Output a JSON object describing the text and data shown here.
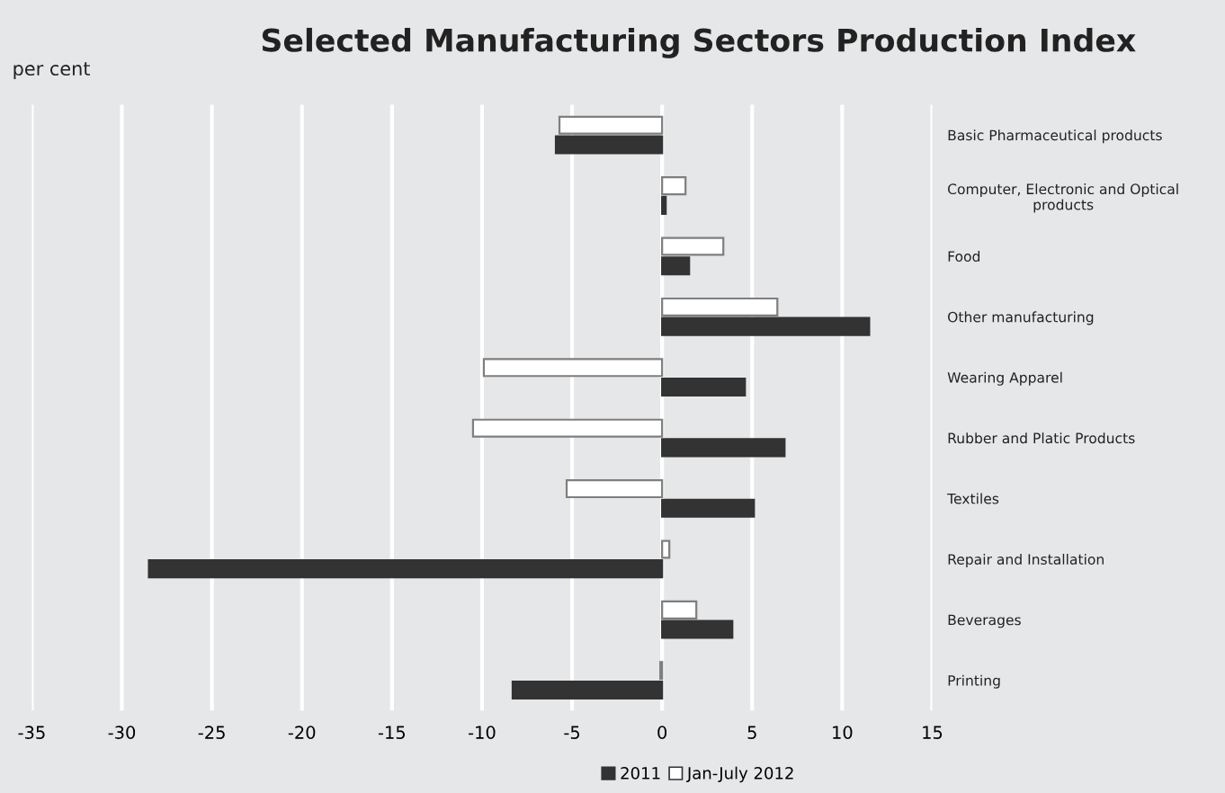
{
  "chart_data": {
    "type": "bar",
    "orientation": "horizontal",
    "title": "Selected Manufacturing Sectors Production Index",
    "xlabel": "per cent",
    "categories": [
      "Basic Pharmaceutical products",
      "Computer, Electronic and Optical\nproducts",
      "Food",
      "Other manufacturing",
      "Wearing Apparel",
      "Rubber and Platic Products",
      "Textiles",
      "Repair and Installation",
      "Beverages",
      "Printing"
    ],
    "series": [
      {
        "name": "2011",
        "color": "#333333",
        "values": [
          -5.9,
          0.2,
          1.5,
          11.5,
          4.6,
          6.8,
          5.1,
          -28.5,
          3.9,
          -8.3
        ]
      },
      {
        "name": "Jan-July 2012",
        "color": "#ffffff",
        "values": [
          -5.7,
          1.3,
          3.4,
          6.4,
          -9.9,
          -10.5,
          -5.3,
          0.4,
          1.9,
          -0.1
        ]
      }
    ],
    "xlim": [
      -35,
      15
    ],
    "xticks": [
      -35,
      -30,
      -25,
      -20,
      -15,
      -10,
      -5,
      0,
      5,
      10,
      15
    ],
    "grid": "x",
    "legend": "bottom"
  }
}
